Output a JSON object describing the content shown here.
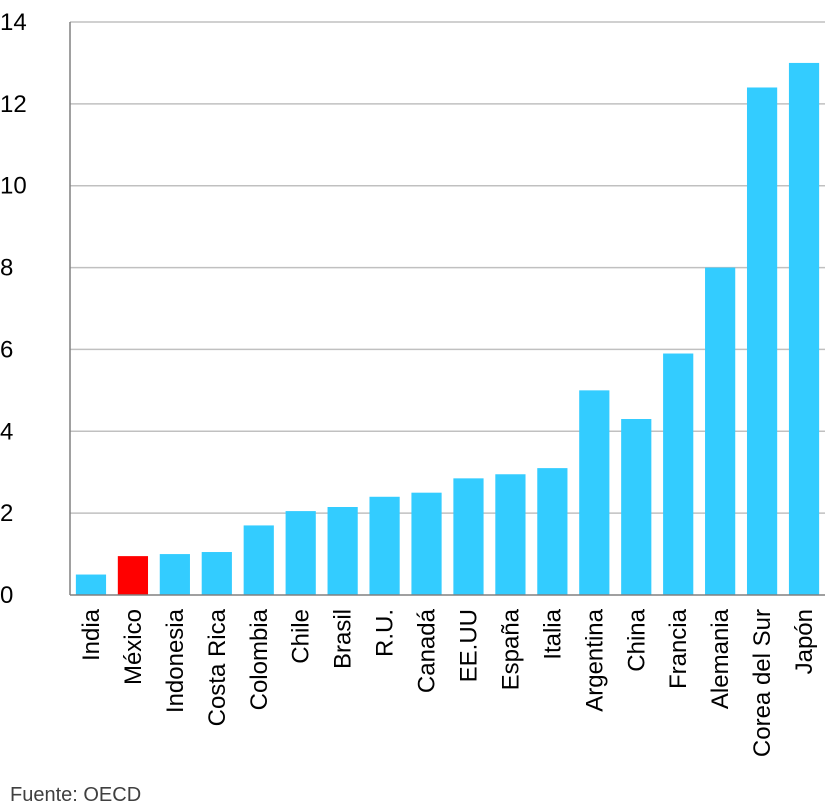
{
  "chart_data": {
    "type": "bar",
    "title": "",
    "xlabel": "",
    "ylabel": "",
    "ylim": [
      0,
      14
    ],
    "yticks": [
      0,
      2,
      4,
      6,
      8,
      10,
      12,
      14
    ],
    "grid": true,
    "categories": [
      "India",
      "México",
      "Indonesia",
      "Costa Rica",
      "Colombia",
      "Chile",
      "Brasil",
      "R.U.",
      "Canadá",
      "EE.UU",
      "España",
      "Italia",
      "Argentina",
      "China",
      "Francia",
      "Alemania",
      "Corea del Sur",
      "Japón"
    ],
    "values": [
      0.5,
      0.95,
      1.0,
      1.05,
      1.7,
      2.05,
      2.15,
      2.4,
      2.5,
      2.85,
      2.95,
      3.1,
      5.0,
      4.3,
      5.9,
      8.0,
      12.4,
      13.0
    ],
    "colors": {
      "default": "#33ccff",
      "highlight": "#ff0000",
      "grid": "#c0c0c0",
      "axis": "#808080"
    },
    "highlight_category": "México"
  },
  "source": "Fuente: OECD"
}
